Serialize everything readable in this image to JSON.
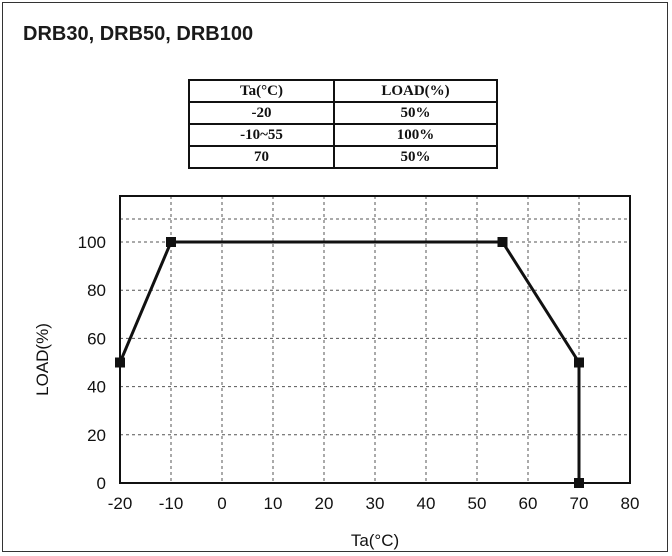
{
  "title": "DRB30, DRB50, DRB100",
  "table": {
    "headers": [
      "Ta(°C)",
      "LOAD(%)"
    ],
    "rows": [
      [
        "-20",
        "50%"
      ],
      [
        "-10~55",
        "100%"
      ],
      [
        "70",
        "50%"
      ]
    ]
  },
  "chart_data": {
    "type": "line",
    "xlabel": "Ta(°C)",
    "ylabel": "LOAD(%)",
    "xlim": [
      -20,
      80
    ],
    "ylim": [
      0,
      100
    ],
    "x_ticks": [
      -20,
      -10,
      0,
      10,
      20,
      30,
      40,
      50,
      60,
      70,
      80
    ],
    "y_ticks": [
      0,
      20,
      40,
      60,
      80,
      100
    ],
    "grid": true,
    "series": [
      {
        "x": [
          -20,
          -10,
          55,
          70,
          70
        ],
        "y": [
          50,
          100,
          100,
          50,
          0
        ],
        "color": "#111111",
        "marker": "square"
      }
    ]
  }
}
